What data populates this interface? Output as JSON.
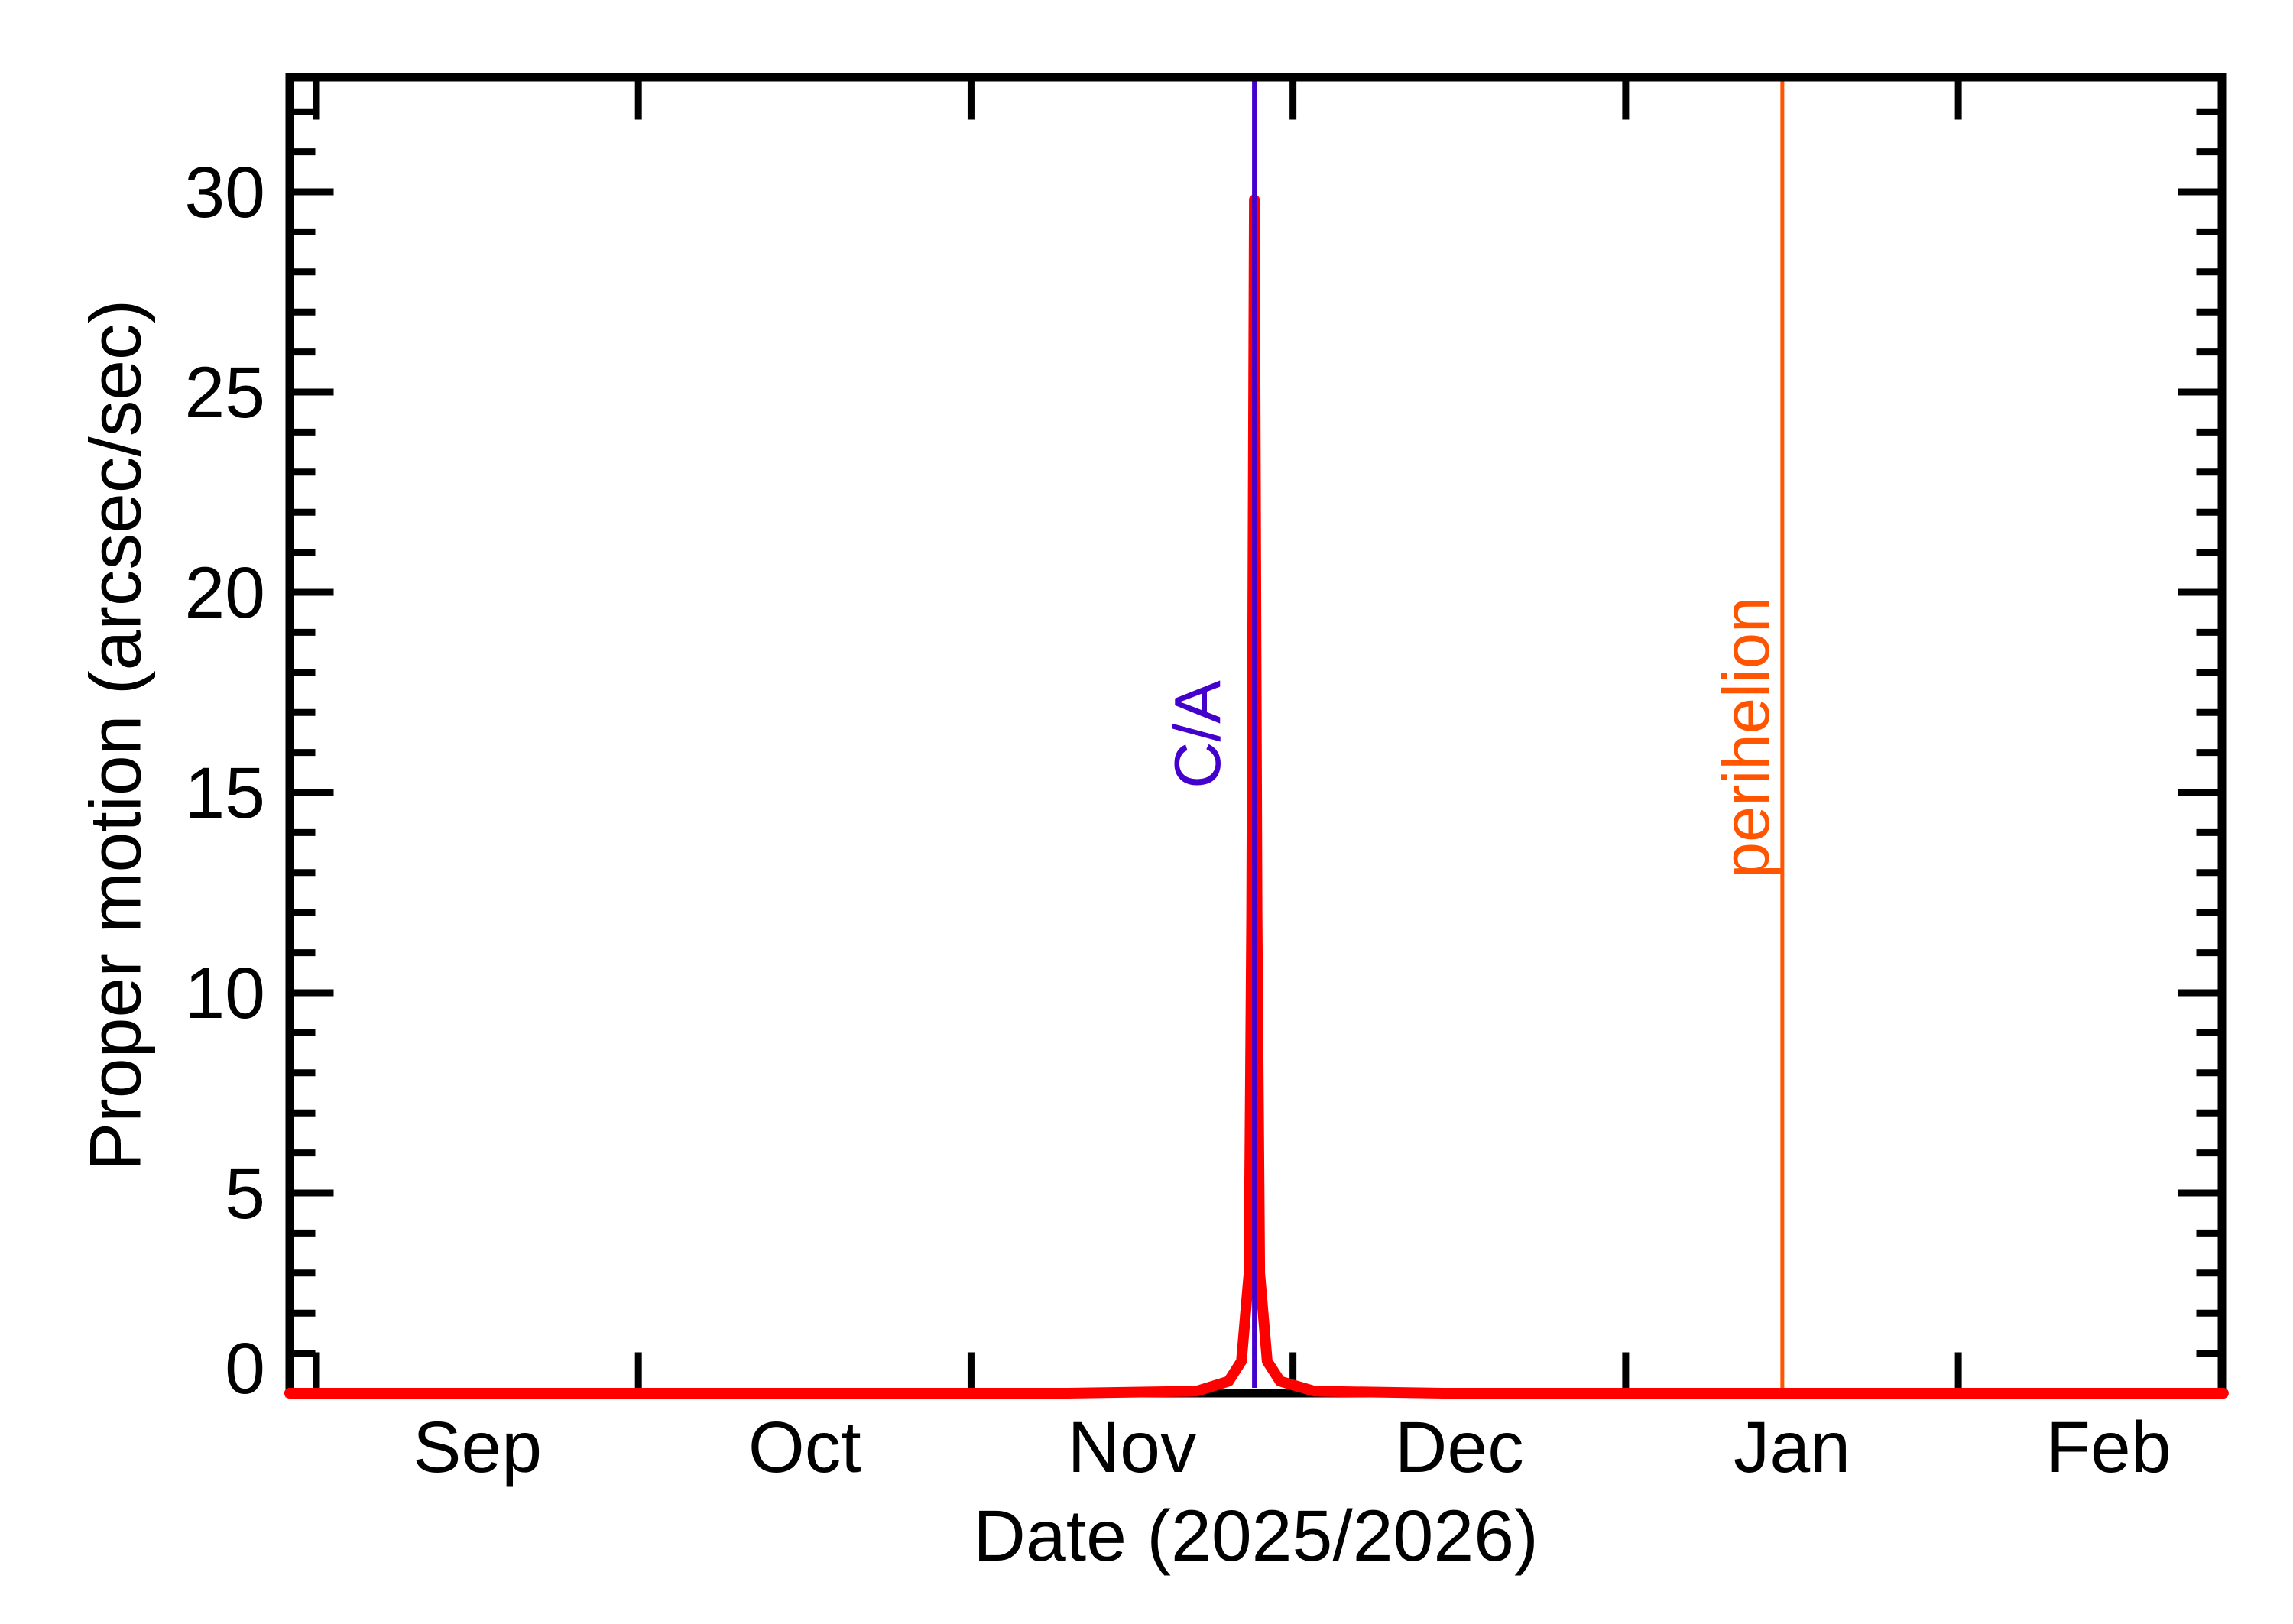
{
  "chart_data": {
    "type": "line",
    "title": "",
    "xlabel": "Date (2025/2026)",
    "ylabel": "Proper motion (arcsec/sec)",
    "x_axis": {
      "unit": "days from 2025-09-01",
      "range": [
        -2.5,
        177.7
      ],
      "month_ticks": [
        {
          "label": "Sep",
          "boundary_day": 0,
          "label_day": 15
        },
        {
          "label": "Oct",
          "boundary_day": 30,
          "label_day": 45.5
        },
        {
          "label": "Nov",
          "boundary_day": 61,
          "label_day": 76
        },
        {
          "label": "Dec",
          "boundary_day": 91,
          "label_day": 106.5
        },
        {
          "label": "Jan",
          "boundary_day": 122,
          "label_day": 137.5
        },
        {
          "label": "Feb",
          "boundary_day": 153,
          "label_day": 167
        }
      ]
    },
    "y_axis": {
      "range": [
        0,
        32.85
      ],
      "major_ticks": [
        0,
        5,
        10,
        15,
        20,
        25,
        30
      ],
      "minor_tick_step": 1,
      "grid": false
    },
    "series": [
      {
        "name": "proper-motion-curve",
        "color": "#ff0000",
        "stroke_width": 14,
        "points": [
          [
            -2.5,
            0
          ],
          [
            40,
            0
          ],
          [
            70,
            0
          ],
          [
            82,
            0.05
          ],
          [
            85,
            0.3
          ],
          [
            86.2,
            0.8
          ],
          [
            86.9,
            3
          ],
          [
            87.15,
            12
          ],
          [
            87.4,
            29.8
          ],
          [
            87.65,
            12
          ],
          [
            87.9,
            3
          ],
          [
            88.6,
            0.8
          ],
          [
            89.8,
            0.3
          ],
          [
            93,
            0.05
          ],
          [
            105,
            0
          ],
          [
            140,
            0
          ],
          [
            177.7,
            0
          ]
        ]
      }
    ],
    "annotations": [
      {
        "label": "C/A",
        "day": 87.4,
        "approx_date": "2025-11-27",
        "color": "#4400cc"
      },
      {
        "label": "perihelion",
        "day": 136.6,
        "approx_date": "2026-01-15",
        "color": "#ff5500"
      }
    ],
    "peak": {
      "approx_date": "2025-11-27",
      "value": 29.8
    },
    "axis_color": "#000000",
    "background_color": "#ffffff",
    "legend": "none"
  }
}
